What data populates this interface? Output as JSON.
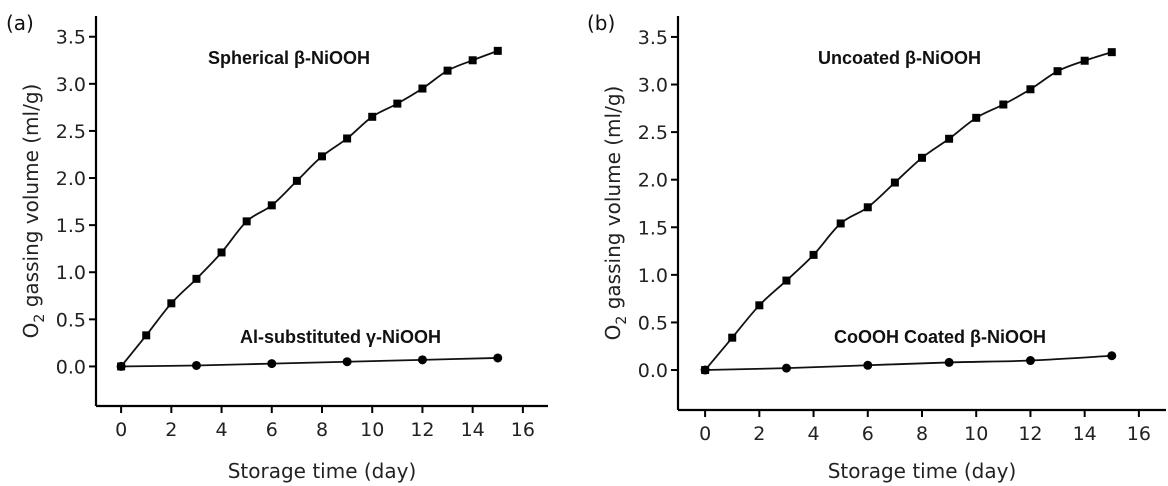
{
  "chart_data": [
    {
      "type": "line",
      "panel_label": "(a)",
      "xlabel": "Storage time (day)",
      "ylabel": "O",
      "ylabel_sub": "2",
      "ylabel_rest": " gassing volume (ml/g)",
      "xlim": [
        -1,
        17
      ],
      "ylim": [
        -0.42,
        3.72
      ],
      "xticks": [
        "0",
        "2",
        "4",
        "6",
        "8",
        "10",
        "12",
        "14",
        "16"
      ],
      "yticks": [
        "0.0",
        "0.5",
        "1.0",
        "1.5",
        "2.0",
        "2.5",
        "3.0",
        "3.5"
      ],
      "series": [
        {
          "marker": "square",
          "label": "Spherical β-NiOOH",
          "x": [
            0,
            1,
            2,
            3,
            4,
            5,
            6,
            7,
            8,
            9,
            10,
            11,
            12,
            13,
            14,
            15
          ],
          "values": [
            0.0,
            0.33,
            0.67,
            0.93,
            1.21,
            1.54,
            1.71,
            1.97,
            2.23,
            2.42,
            2.65,
            2.79,
            2.95,
            3.14,
            3.25,
            3.35
          ]
        },
        {
          "marker": "circle",
          "label": "Al-substituted γ-NiOOH",
          "x": [
            0,
            3,
            6,
            9,
            12,
            15
          ],
          "values": [
            0.0,
            0.01,
            0.03,
            0.05,
            0.07,
            0.09
          ]
        }
      ]
    },
    {
      "type": "line",
      "panel_label": "(b)",
      "xlabel": "Storage time (day)",
      "ylabel": "O",
      "ylabel_sub": "2",
      "ylabel_rest": " gassing volume (ml/g)",
      "xlim": [
        -1,
        17
      ],
      "ylim": [
        -0.42,
        3.72
      ],
      "xticks": [
        "0",
        "2",
        "4",
        "6",
        "8",
        "10",
        "12",
        "14",
        "16"
      ],
      "yticks": [
        "0.0",
        "0.5",
        "1.0",
        "1.5",
        "2.0",
        "2.5",
        "3.0",
        "3.5"
      ],
      "series": [
        {
          "marker": "square",
          "label": "Uncoated β-NiOOH",
          "x": [
            0,
            1,
            2,
            3,
            4,
            5,
            6,
            7,
            8,
            9,
            10,
            11,
            12,
            13,
            14,
            15
          ],
          "values": [
            0.0,
            0.34,
            0.68,
            0.94,
            1.21,
            1.54,
            1.71,
            1.97,
            2.23,
            2.43,
            2.65,
            2.79,
            2.95,
            3.14,
            3.25,
            3.34
          ]
        },
        {
          "marker": "circle",
          "label": "CoOOH Coated β-NiOOH",
          "x": [
            0,
            3,
            6,
            9,
            12,
            15
          ],
          "values": [
            0.0,
            0.02,
            0.05,
            0.08,
            0.1,
            0.15
          ]
        }
      ]
    }
  ]
}
